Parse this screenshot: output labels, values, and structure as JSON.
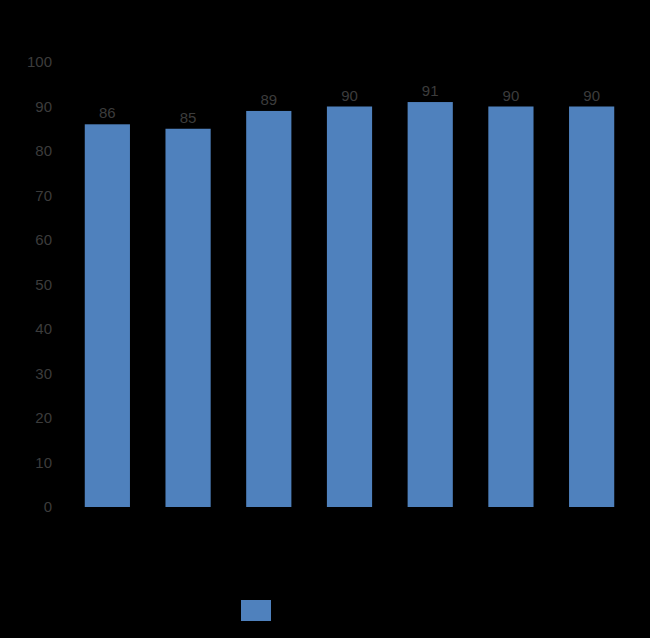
{
  "chart_data": {
    "type": "bar",
    "categories": [
      null,
      null,
      null,
      null,
      null,
      null,
      null
    ],
    "values": [
      86,
      85,
      89,
      90,
      91,
      90,
      90
    ],
    "color": "#4f81bd",
    "ylim": [
      0,
      100
    ],
    "yticks": [
      0,
      10,
      20,
      30,
      40,
      50,
      60,
      70,
      80,
      90,
      100
    ],
    "grid": false,
    "data_labels": true,
    "legend": "bottom"
  }
}
